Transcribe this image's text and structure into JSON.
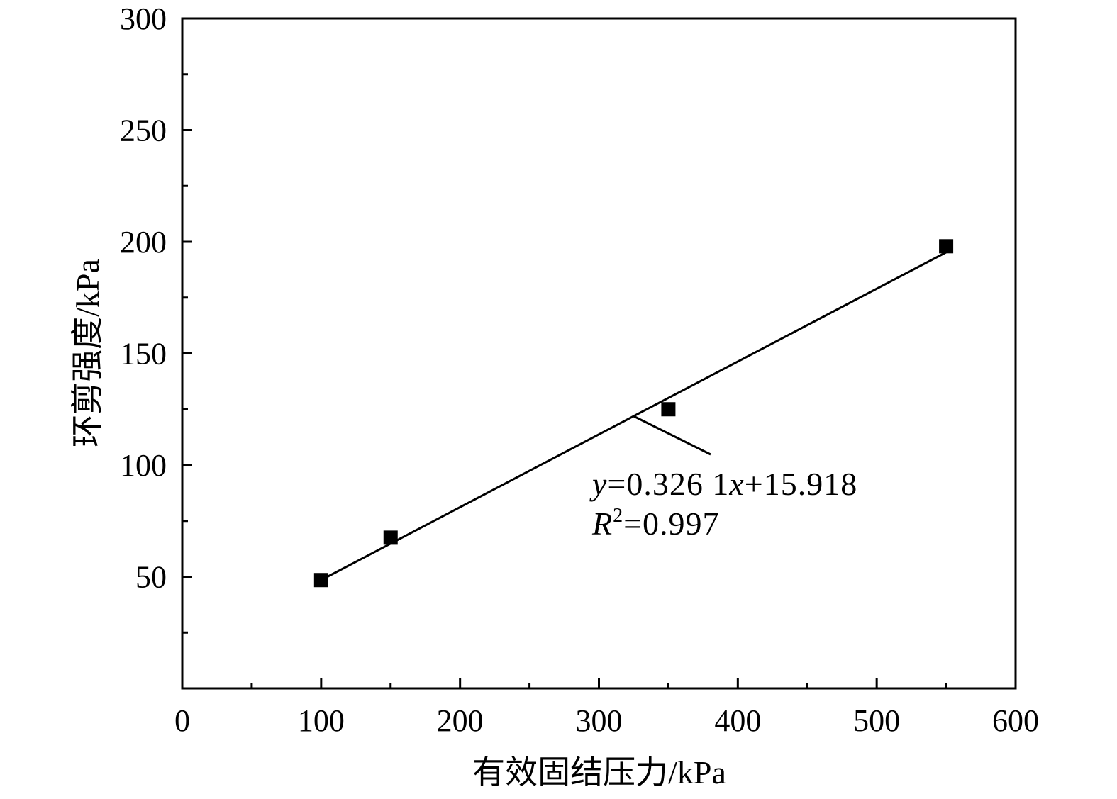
{
  "chart_data": {
    "type": "scatter",
    "title": "",
    "xlabel": "有效固结压力/kPa",
    "ylabel": "环剪强度/kPa",
    "xlim": [
      0,
      600
    ],
    "ylim": [
      0,
      300
    ],
    "x_ticks": [
      "0",
      "100",
      "200",
      "300",
      "400",
      "500",
      "600"
    ],
    "y_ticks": [
      "50",
      "100",
      "150",
      "200",
      "250",
      "300"
    ],
    "grid": false,
    "legend": "none",
    "series": [
      {
        "marker": "square",
        "x": [
          100,
          150,
          350,
          550
        ],
        "y": [
          48.5,
          67.5,
          125,
          198
        ]
      }
    ],
    "fit": {
      "slope": 0.3261,
      "intercept": 15.918,
      "x_range": [
        100,
        550
      ],
      "equation": {
        "y_var": "y",
        "eq_part1": "=0.326 1",
        "x_var": "x",
        "eq_part2": "+15.918"
      },
      "r2": {
        "r_var": "R",
        "sup": "2",
        "value": "=0.997"
      }
    },
    "colors": {
      "marks": "#000000",
      "background": "#ffffff"
    }
  }
}
